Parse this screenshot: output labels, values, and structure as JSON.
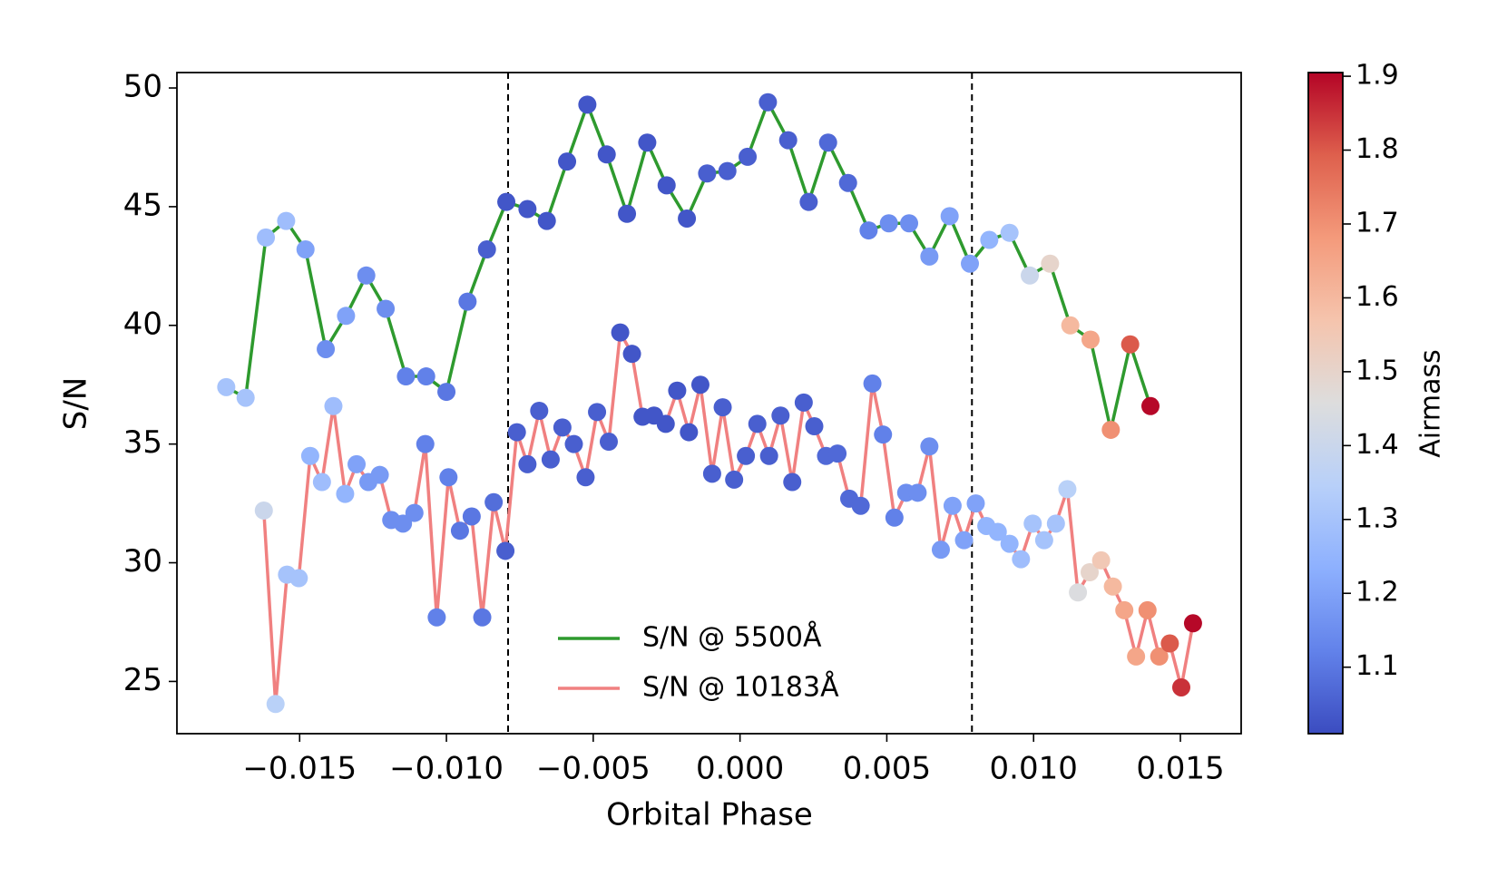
{
  "chart_data": {
    "type": "line",
    "xlabel": "Orbital Phase",
    "ylabel": "S/N",
    "xlim": [
      -0.01918,
      0.01707
    ],
    "ylim": [
      22.8,
      50.65
    ],
    "xticks": [
      {
        "value": -0.015,
        "label": "−0.015"
      },
      {
        "value": -0.01,
        "label": "−0.010"
      },
      {
        "value": -0.005,
        "label": "−0.005"
      },
      {
        "value": 0,
        "label": "0.000"
      },
      0.005,
      {
        "value": 0.01,
        "label": "0.010"
      },
      0.015
    ],
    "yticks": [
      25,
      30,
      35,
      40,
      45,
      50
    ],
    "vlines": [
      -0.0079,
      0.0079
    ],
    "legend": "lower center",
    "colorbar_label": "Airmass",
    "clim": [
      1.01,
      1.905
    ],
    "cticks": [
      1.1,
      1.2,
      1.3,
      1.4,
      1.5,
      1.6,
      1.7,
      1.8,
      1.9
    ],
    "colormap": [
      "#3b4cc0",
      "#6282ea",
      "#8db0fe",
      "#b8d0f9",
      "#dddddd",
      "#f5c4ad",
      "#f49a7b",
      "#de604d",
      "#b40426"
    ],
    "series": [
      {
        "name": "S/N @ 5500Å",
        "color": "#2e9a2e",
        "x": [
          -0.0175,
          -0.01684,
          -0.01615,
          -0.01546,
          -0.0148,
          -0.01411,
          -0.01342,
          -0.01273,
          -0.01207,
          -0.01138,
          -0.01069,
          -0.01,
          -0.00928,
          -0.00862,
          -0.00796,
          -0.00724,
          -0.00658,
          -0.00589,
          -0.0052,
          -0.00454,
          -0.00385,
          -0.00316,
          -0.0025,
          -0.00181,
          -0.00112,
          -0.00043,
          0.00026,
          0.00095,
          0.00164,
          0.00234,
          0.003,
          0.00368,
          0.00438,
          0.00507,
          0.00576,
          0.00645,
          0.00714,
          0.00783,
          0.00849,
          0.00918,
          0.00987,
          0.01056,
          0.01125,
          0.01194,
          0.01263,
          0.01329,
          0.01398
        ],
        "values": [
          37.4,
          36.95,
          43.7,
          44.4,
          43.2,
          39.0,
          40.4,
          42.1,
          40.7,
          37.85,
          37.85,
          37.2,
          41.0,
          43.2,
          45.2,
          44.9,
          44.4,
          46.9,
          49.3,
          47.2,
          44.7,
          47.7,
          45.9,
          44.5,
          46.4,
          46.5,
          47.1,
          49.4,
          47.8,
          45.2,
          47.7,
          46.0,
          44.0,
          44.3,
          44.3,
          42.9,
          44.6,
          42.6,
          43.6,
          43.9,
          42.1,
          42.6,
          40.0,
          39.4,
          35.6,
          39.2,
          36.6
        ],
        "airmass": [
          1.3,
          1.3,
          1.28,
          1.28,
          1.2,
          1.15,
          1.2,
          1.15,
          1.15,
          1.12,
          1.12,
          1.1,
          1.1,
          1.05,
          1.03,
          1.03,
          1.03,
          1.03,
          1.03,
          1.03,
          1.03,
          1.03,
          1.03,
          1.03,
          1.05,
          1.05,
          1.05,
          1.05,
          1.05,
          1.05,
          1.07,
          1.07,
          1.12,
          1.15,
          1.15,
          1.18,
          1.2,
          1.2,
          1.25,
          1.3,
          1.4,
          1.5,
          1.6,
          1.65,
          1.7,
          1.8,
          1.9
        ]
      },
      {
        "name": "S/N @ 10183Å",
        "color": "#f08080",
        "x": [
          -0.01622,
          -0.01582,
          -0.01543,
          -0.01503,
          -0.01464,
          -0.01424,
          -0.01385,
          -0.01345,
          -0.01306,
          -0.01266,
          -0.01227,
          -0.01188,
          -0.01148,
          -0.01109,
          -0.01072,
          -0.01033,
          -0.00993,
          -0.00954,
          -0.00914,
          -0.00878,
          -0.00839,
          -0.00799,
          -0.0076,
          -0.00724,
          -0.00684,
          -0.00645,
          -0.00605,
          -0.00566,
          -0.00526,
          -0.00487,
          -0.00447,
          -0.00408,
          -0.00368,
          -0.00332,
          -0.00293,
          -0.00253,
          -0.00214,
          -0.00174,
          -0.00135,
          -0.00095,
          -0.00059,
          -0.0002,
          0.0002,
          0.00059,
          0.00099,
          0.00138,
          0.00178,
          0.00217,
          0.00253,
          0.00293,
          0.00332,
          0.00372,
          0.00411,
          0.00451,
          0.00487,
          0.00526,
          0.00566,
          0.00605,
          0.00645,
          0.00684,
          0.00724,
          0.00763,
          0.00803,
          0.00839,
          0.00878,
          0.00918,
          0.00957,
          0.00997,
          0.01036,
          0.01076,
          0.01115,
          0.01151,
          0.01191,
          0.0123,
          0.0127,
          0.01309,
          0.01349,
          0.01388,
          0.01428,
          0.01464,
          0.01503,
          0.01543
        ],
        "values": [
          32.2,
          24.05,
          29.5,
          29.35,
          34.5,
          33.4,
          36.6,
          32.9,
          34.15,
          33.4,
          33.7,
          31.8,
          31.65,
          32.1,
          35.0,
          27.7,
          33.6,
          31.35,
          31.95,
          27.7,
          32.55,
          30.5,
          35.5,
          34.15,
          36.4,
          34.35,
          35.7,
          35.0,
          33.6,
          36.35,
          35.1,
          39.7,
          38.8,
          36.15,
          36.2,
          35.85,
          37.25,
          35.5,
          37.5,
          33.75,
          36.55,
          33.5,
          34.5,
          35.85,
          34.5,
          36.2,
          33.4,
          36.75,
          35.75,
          34.5,
          34.6,
          32.7,
          32.4,
          37.55,
          35.4,
          31.9,
          32.95,
          32.95,
          34.9,
          30.55,
          32.4,
          30.95,
          32.5,
          31.55,
          31.3,
          30.8,
          30.15,
          31.65,
          30.95,
          31.65,
          33.1,
          28.75,
          29.6,
          30.1,
          29.0,
          28.0,
          26.05,
          28.0,
          26.05,
          26.6,
          24.75,
          27.45
        ],
        "airmass": [
          1.4,
          1.35,
          1.3,
          1.3,
          1.25,
          1.28,
          1.28,
          1.25,
          1.2,
          1.18,
          1.18,
          1.15,
          1.15,
          1.15,
          1.12,
          1.12,
          1.12,
          1.1,
          1.1,
          1.1,
          1.08,
          1.05,
          1.05,
          1.05,
          1.05,
          1.05,
          1.05,
          1.05,
          1.05,
          1.05,
          1.05,
          1.03,
          1.03,
          1.03,
          1.03,
          1.03,
          1.03,
          1.03,
          1.03,
          1.05,
          1.05,
          1.05,
          1.05,
          1.05,
          1.05,
          1.05,
          1.05,
          1.05,
          1.05,
          1.07,
          1.07,
          1.07,
          1.07,
          1.12,
          1.12,
          1.12,
          1.15,
          1.15,
          1.15,
          1.18,
          1.2,
          1.2,
          1.2,
          1.25,
          1.25,
          1.25,
          1.28,
          1.3,
          1.3,
          1.3,
          1.35,
          1.45,
          1.5,
          1.55,
          1.6,
          1.65,
          1.65,
          1.7,
          1.7,
          1.8,
          1.85,
          1.9
        ]
      }
    ]
  }
}
